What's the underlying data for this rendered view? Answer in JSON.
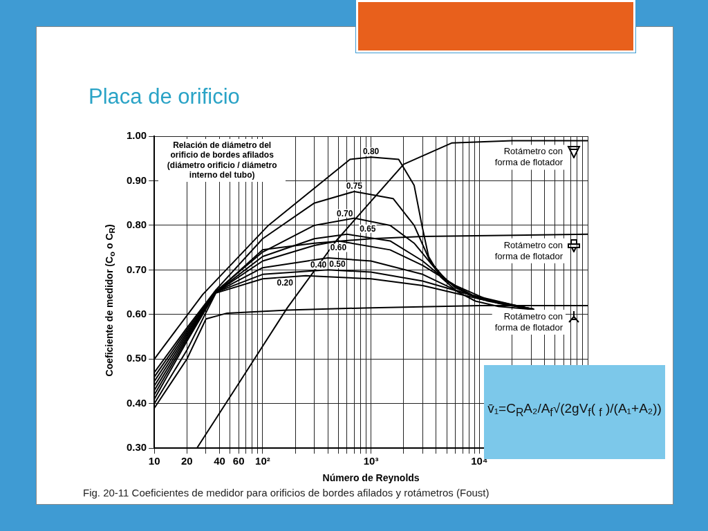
{
  "chart_data": {
    "type": "line",
    "title": "Placa de orificio",
    "xlabel": "Número de Reynolds",
    "ylabel": "Coeficiente de medidor (C$_{o}$ o C$_{R}$)",
    "legend_title": "Relación de diámetro del orificio de bordes afilados (diámetro orificio / diámetro interno del tubo)",
    "log": "x",
    "grid": true,
    "legend": "right",
    "marker": "none",
    "line_style": "solid",
    "xlim": [
      10,
      100000
    ],
    "ylim": [
      0.3,
      1.0
    ],
    "xticks": [
      10,
      20,
      {
        "value": 30,
        "label": null
      },
      40,
      {
        "value": 50,
        "label": null
      },
      60,
      {
        "value": 70,
        "label": null
      },
      {
        "value": 80,
        "label": null
      },
      {
        "value": 90,
        "label": null
      },
      {
        "value": 100,
        "label": "10²"
      },
      {
        "value": 200,
        "label": null
      },
      {
        "value": 300,
        "label": null
      },
      {
        "value": 400,
        "label": null
      },
      {
        "value": 500,
        "label": null
      },
      {
        "value": 600,
        "label": null
      },
      {
        "value": 700,
        "label": null
      },
      {
        "value": 800,
        "label": null
      },
      {
        "value": 900,
        "label": null
      },
      {
        "value": 1000,
        "label": "10³"
      },
      {
        "value": 2000,
        "label": null
      },
      {
        "value": 3000,
        "label": null
      },
      {
        "value": 4000,
        "label": null
      },
      {
        "value": 5000,
        "label": null
      },
      {
        "value": 6000,
        "label": null
      },
      {
        "value": 7000,
        "label": null
      },
      {
        "value": 8000,
        "label": null
      },
      {
        "value": 9000,
        "label": null
      },
      {
        "value": 10000,
        "label": "10⁴"
      },
      {
        "value": 20000,
        "label": null
      },
      {
        "value": 30000,
        "label": null
      },
      {
        "value": 40000,
        "label": null
      },
      {
        "value": 50000,
        "label": null
      },
      {
        "value": 60000,
        "label": null
      },
      {
        "value": 70000,
        "label": null
      },
      {
        "value": 80000,
        "label": null
      },
      {
        "value": 90000,
        "label": null
      },
      {
        "value": 100000,
        "label": null
      }
    ],
    "yticks": [
      {
        "value": 0.3,
        "label": "0.30"
      },
      {
        "value": 0.4,
        "label": "0.40"
      },
      {
        "value": 0.5,
        "label": "0.50"
      },
      {
        "value": 0.6,
        "label": "0.60"
      },
      {
        "value": 0.7,
        "label": "0.70"
      },
      {
        "value": 0.8,
        "label": "0.80"
      },
      {
        "value": 0.9,
        "label": "0.90"
      },
      {
        "value": 1.0,
        "label": "1.00"
      }
    ],
    "series": [
      {
        "name": "0.80",
        "color": "#000000",
        "x": [
          10,
          28,
          113,
          640,
          1000,
          1800,
          2500,
          2950,
          3400,
          4400,
          6200,
          9200,
          15000,
          31500
        ],
        "values": [
          0.5,
          0.645,
          0.8,
          0.948,
          0.953,
          0.948,
          0.89,
          0.8,
          0.73,
          0.684,
          0.652,
          0.63,
          0.618,
          0.611
        ]
      },
      {
        "name": "0.75",
        "color": "#000000",
        "x": [
          10,
          20,
          37,
          100,
          300,
          700,
          1600,
          2500,
          3500,
          5000,
          8000,
          15000,
          31500
        ],
        "values": [
          0.47,
          0.57,
          0.655,
          0.77,
          0.85,
          0.876,
          0.86,
          0.8,
          0.72,
          0.675,
          0.645,
          0.625,
          0.612
        ]
      },
      {
        "name": "0.70",
        "color": "#000000",
        "x": [
          10,
          20,
          37,
          100,
          300,
          700,
          1500,
          2500,
          4000,
          6000,
          10000,
          31500
        ],
        "values": [
          0.46,
          0.565,
          0.652,
          0.74,
          0.8,
          0.816,
          0.8,
          0.76,
          0.7,
          0.66,
          0.635,
          0.612
        ]
      },
      {
        "name": "0.65",
        "color": "#000000",
        "x": [
          10,
          20,
          37,
          100,
          300,
          600,
          1500,
          3000,
          5000,
          10000,
          31500
        ],
        "values": [
          0.45,
          0.56,
          0.65,
          0.73,
          0.77,
          0.78,
          0.765,
          0.72,
          0.675,
          0.635,
          0.612
        ]
      },
      {
        "name": "0.60",
        "color": "#000000",
        "x": [
          10,
          20,
          37,
          100,
          300,
          500,
          1500,
          3000,
          6000,
          12000,
          31500
        ],
        "values": [
          0.44,
          0.555,
          0.65,
          0.72,
          0.755,
          0.765,
          0.745,
          0.71,
          0.665,
          0.633,
          0.612
        ]
      },
      {
        "name": "0.50",
        "color": "#000000",
        "x": [
          10,
          20,
          37,
          100,
          400,
          1000,
          3000,
          6000,
          12000,
          31500
        ],
        "values": [
          0.43,
          0.55,
          0.65,
          0.705,
          0.727,
          0.72,
          0.69,
          0.655,
          0.63,
          0.611
        ]
      },
      {
        "name": "0.40",
        "color": "#000000",
        "x": [
          10,
          20,
          37,
          100,
          400,
          1000,
          3000,
          8000,
          31500
        ],
        "values": [
          0.42,
          0.545,
          0.65,
          0.69,
          0.7,
          0.695,
          0.675,
          0.645,
          0.611
        ]
      },
      {
        "name": "0.20",
        "color": "#000000",
        "x": [
          10,
          20,
          37,
          100,
          250,
          1000,
          3000,
          10000,
          31500
        ],
        "values": [
          0.4,
          0.52,
          0.648,
          0.68,
          0.687,
          0.68,
          0.665,
          0.635,
          0.611
        ]
      },
      {
        "name": "Rotámetro con forma de flotador",
        "color": "#000000",
        "x": [
          24.7,
          60,
          169,
          476,
          2000,
          5600,
          20000,
          100000
        ],
        "values": [
          0.3,
          0.445,
          0.615,
          0.765,
          0.937,
          0.985,
          0.99,
          0.99
        ]
      },
      {
        "name": "Rotámetro con forma de flotador",
        "color": "#000000",
        "x": [
          10,
          20,
          37,
          100,
          300,
          1000,
          3000,
          100000
        ],
        "values": [
          0.41,
          0.54,
          0.65,
          0.745,
          0.76,
          0.77,
          0.775,
          0.78
        ]
      },
      {
        "name": "Rotámetro con forma de flotador",
        "color": "#000000",
        "x": [
          10,
          20,
          30,
          47,
          170,
          1000,
          10000,
          100000
        ],
        "values": [
          0.39,
          0.5,
          0.59,
          0.603,
          0.61,
          0.615,
          0.62,
          0.62
        ]
      }
    ],
    "annotations": [
      "v̄₁=C$_{R}$A₂/A$_{f}$√(2gV$_{f}$( $_{f}$ )/(A₁+A₂))",
      "Fig. 20-11 Coeficientes de medidor para orificios de bordes afilados y rotámetros (Foust)"
    ]
  }
}
